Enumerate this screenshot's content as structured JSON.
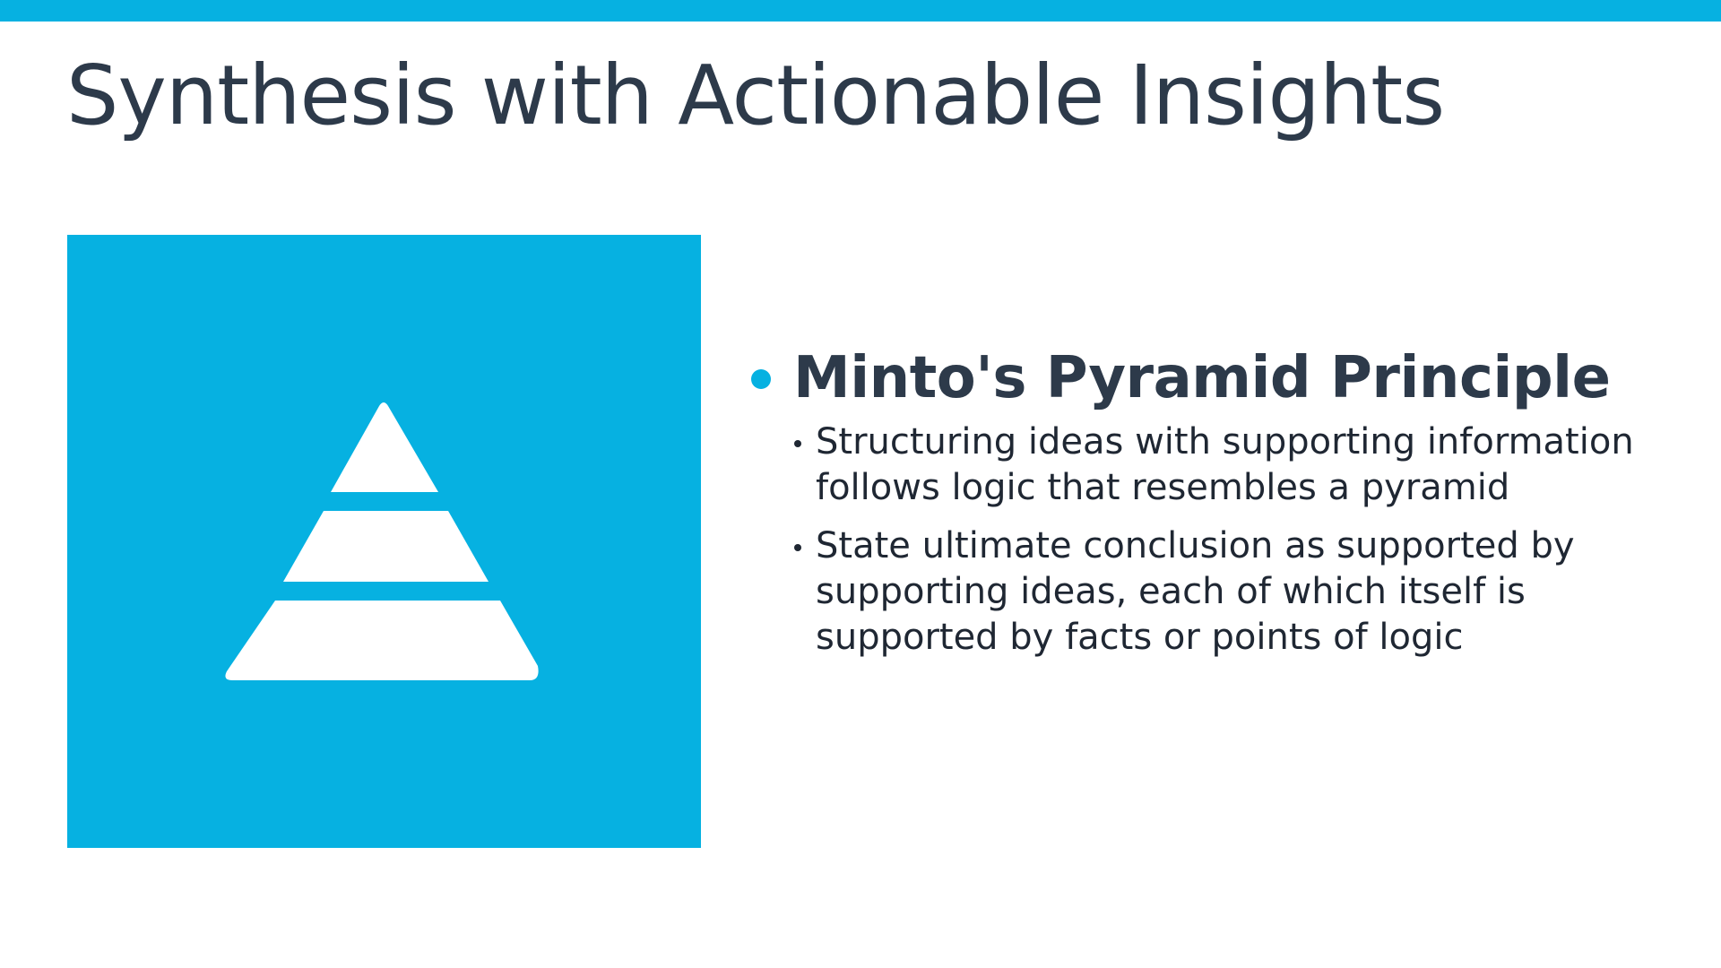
{
  "colors": {
    "accent": "#06b1e1",
    "title_text": "#2d3a4a",
    "body_text": "#1f2733",
    "background": "#ffffff"
  },
  "slide": {
    "title": "Synthesis with Actionable Insights"
  },
  "image": {
    "icon": "pyramid-icon"
  },
  "content": {
    "main_bullet": "Minto's Pyramid Principle",
    "sub_bullets": [
      "Structuring ideas with supporting information follows logic that resembles a pyramid",
      "State ultimate conclusion as supported by supporting ideas, each of which itself is supported by facts or points of logic"
    ]
  }
}
